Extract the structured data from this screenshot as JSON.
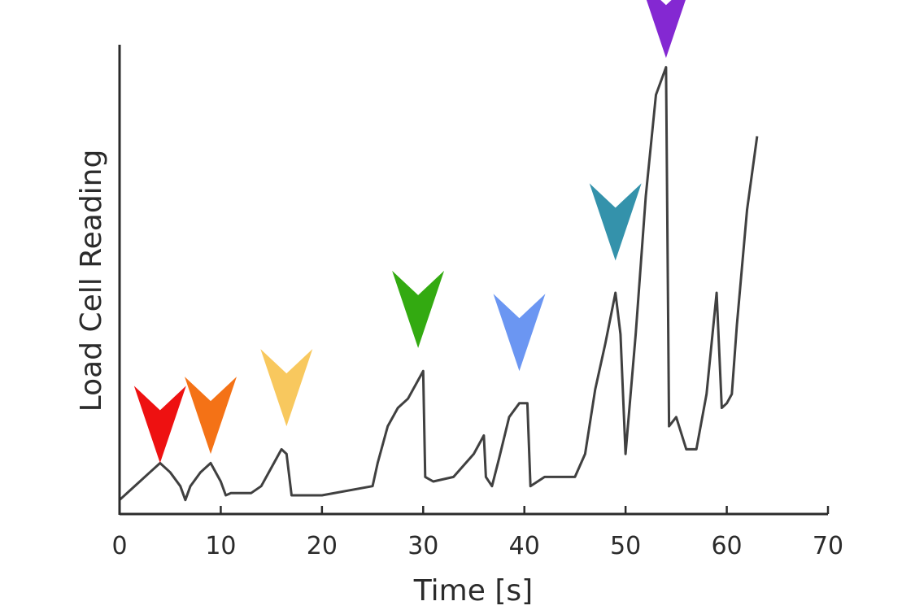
{
  "chart_data": {
    "type": "line",
    "title": "",
    "xlabel": "Time [s]",
    "ylabel": "Load Cell Reading",
    "xlim": [
      0,
      70
    ],
    "ylim": [
      0,
      10
    ],
    "xticks": [
      0,
      10,
      20,
      30,
      40,
      50,
      60,
      70
    ],
    "yticks_shown": false,
    "grid": false,
    "series": [
      {
        "color": "#404040",
        "x": [
          0,
          1,
          2,
          3,
          4,
          5,
          6,
          6.5,
          7,
          8,
          9,
          10,
          10.5,
          11,
          13,
          14,
          15,
          16,
          16.5,
          17,
          17.5,
          20,
          25,
          25.5,
          26.5,
          27.5,
          28.5,
          29.5,
          30,
          30.2,
          31,
          33,
          35,
          36,
          36.2,
          36.8,
          37.5,
          38.5,
          39.5,
          40.3,
          40.6,
          42,
          45,
          46,
          47,
          48,
          49,
          49.5,
          50,
          51,
          52,
          53,
          54,
          54.3,
          55,
          56,
          57,
          58,
          59,
          59.5,
          60,
          60.5,
          61,
          62,
          63
        ],
        "y": [
          0.2,
          0.4,
          0.6,
          0.8,
          1.0,
          0.8,
          0.5,
          0.2,
          0.5,
          0.8,
          1.0,
          0.6,
          0.3,
          0.35,
          0.35,
          0.5,
          0.9,
          1.3,
          1.2,
          0.3,
          0.3,
          0.3,
          0.5,
          1.0,
          1.8,
          2.2,
          2.4,
          2.8,
          3.0,
          0.7,
          0.6,
          0.7,
          1.2,
          1.6,
          0.7,
          0.5,
          1.1,
          2.0,
          2.3,
          2.3,
          0.5,
          0.7,
          0.7,
          1.2,
          2.6,
          3.6,
          4.7,
          3.8,
          1.2,
          3.8,
          6.8,
          9.0,
          9.6,
          1.8,
          2.0,
          1.3,
          1.3,
          2.5,
          4.7,
          2.2,
          2.3,
          2.5,
          4.0,
          6.5,
          8.1
        ]
      }
    ],
    "markers": [
      {
        "x": 4,
        "y": 1.0,
        "color": "#ee1111"
      },
      {
        "x": 9,
        "y": 1.2,
        "color": "#f47216"
      },
      {
        "x": 16.5,
        "y": 1.8,
        "color": "#f8c85e"
      },
      {
        "x": 29.5,
        "y": 3.5,
        "color": "#33aa11"
      },
      {
        "x": 39.5,
        "y": 3.0,
        "color": "#6b96f2"
      },
      {
        "x": 49,
        "y": 5.4,
        "color": "#3492ab"
      },
      {
        "x": 54,
        "y": 9.8,
        "color": "#8428d2"
      }
    ]
  }
}
